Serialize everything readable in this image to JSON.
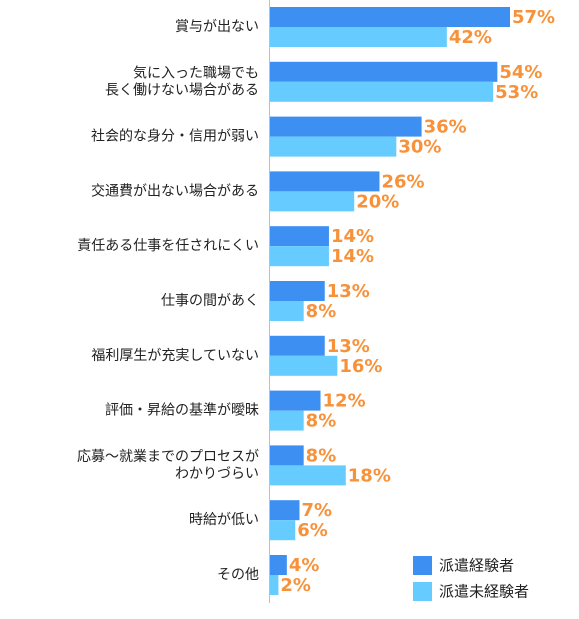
{
  "chart_data": {
    "type": "bar",
    "orientation": "horizontal",
    "categories": [
      [
        "賞与が出ない"
      ],
      [
        "気に入った職場でも",
        "長く働けない場合がある"
      ],
      [
        "社会的な身分・信用が弱い"
      ],
      [
        "交通費が出ない場合がある"
      ],
      [
        "責任ある仕事を任されにくい"
      ],
      [
        "仕事の間があく"
      ],
      [
        "福利厚生が充実していない"
      ],
      [
        "評価・昇給の基準が曖昧"
      ],
      [
        "応募～就業までのプロセスが",
        "わかりづらい"
      ],
      [
        "時給が低い"
      ],
      [
        "その他"
      ]
    ],
    "series": [
      {
        "name": "派遣経験者",
        "color": "#3d8ff2",
        "values": [
          57,
          54,
          36,
          26,
          14,
          13,
          13,
          12,
          8,
          7,
          4
        ]
      },
      {
        "name": "派遣未経験者",
        "color": "#66ccff",
        "values": [
          42,
          53,
          30,
          20,
          14,
          8,
          16,
          8,
          18,
          6,
          2
        ]
      }
    ],
    "value_suffix": "%",
    "value_label_color": "#f7923a",
    "xlim": [
      0,
      57
    ],
    "grid": false,
    "legend_position": "bottom-right"
  }
}
